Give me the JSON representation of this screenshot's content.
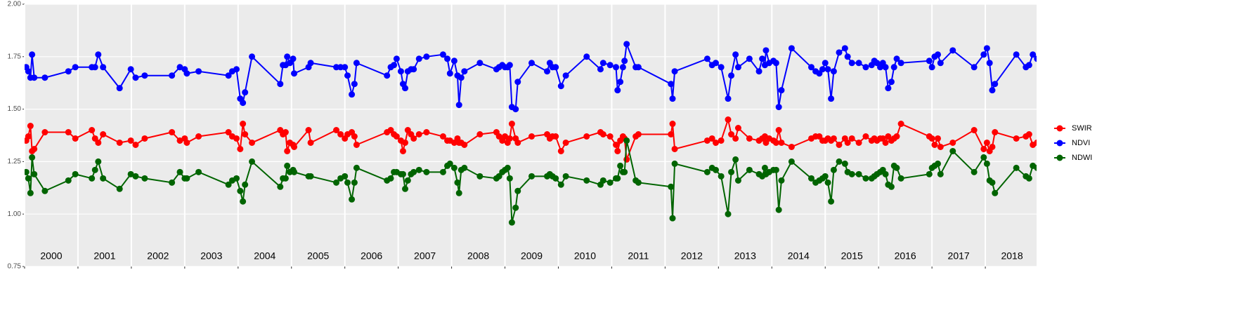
{
  "chart_data": {
    "type": "line",
    "x": [
      2000.03,
      2000.07,
      2000.11,
      2000.14,
      2000.18,
      2000.38,
      2000.82,
      2000.95,
      2001.26,
      2001.32,
      2001.38,
      2001.47,
      2001.78,
      2001.99,
      2002.08,
      2002.25,
      2002.76,
      2002.91,
      2003.0,
      2003.04,
      2003.26,
      2003.82,
      2003.89,
      2003.97,
      2004.04,
      2004.09,
      2004.13,
      2004.26,
      2004.79,
      2004.84,
      2004.89,
      2004.92,
      2004.97,
      2005.03,
      2005.05,
      2005.32,
      2005.36,
      2005.84,
      2005.92,
      2006.0,
      2006.05,
      2006.13,
      2006.18,
      2006.22,
      2006.79,
      2006.86,
      2006.92,
      2006.97,
      2007.05,
      2007.09,
      2007.13,
      2007.18,
      2007.24,
      2007.29,
      2007.39,
      2007.53,
      2007.84,
      2007.92,
      2007.97,
      2008.05,
      2008.11,
      2008.14,
      2008.18,
      2008.24,
      2008.53,
      2008.84,
      2008.89,
      2008.95,
      2009.0,
      2009.05,
      2009.09,
      2009.13,
      2009.2,
      2009.24,
      2009.5,
      2009.79,
      2009.84,
      2009.89,
      2009.95,
      2010.05,
      2010.14,
      2010.53,
      2010.79,
      2010.84,
      2010.97,
      2011.08,
      2011.11,
      2011.16,
      2011.21,
      2011.24,
      2011.28,
      2011.45,
      2011.5,
      2012.11,
      2012.14,
      2012.18,
      2012.79,
      2012.88,
      2012.95,
      2013.05,
      2013.18,
      2013.24,
      2013.32,
      2013.37,
      2013.58,
      2013.76,
      2013.82,
      2013.87,
      2013.89,
      2013.95,
      2014.03,
      2014.08,
      2014.13,
      2014.18,
      2014.37,
      2014.74,
      2014.82,
      2014.89,
      2014.95,
      2015.0,
      2015.05,
      2015.11,
      2015.16,
      2015.26,
      2015.37,
      2015.42,
      2015.5,
      2015.63,
      2015.76,
      2015.87,
      2015.92,
      2015.97,
      2016.03,
      2016.08,
      2016.13,
      2016.18,
      2016.24,
      2016.29,
      2016.34,
      2016.42,
      2016.95,
      2017.0,
      2017.05,
      2017.11,
      2017.16,
      2017.39,
      2017.79,
      2017.97,
      2018.03,
      2018.08,
      2018.13,
      2018.18,
      2018.58,
      2018.76,
      2018.82,
      2018.89,
      2018.97
    ],
    "series": [
      {
        "name": "SWIR",
        "color": "#ff0000",
        "values": [
          1.35,
          1.37,
          1.42,
          1.3,
          1.31,
          1.39,
          1.39,
          1.36,
          1.4,
          1.36,
          1.34,
          1.38,
          1.34,
          1.35,
          1.33,
          1.36,
          1.39,
          1.35,
          1.36,
          1.34,
          1.37,
          1.39,
          1.37,
          1.36,
          1.31,
          1.43,
          1.38,
          1.34,
          1.4,
          1.38,
          1.39,
          1.3,
          1.34,
          1.33,
          1.32,
          1.4,
          1.34,
          1.4,
          1.38,
          1.36,
          1.38,
          1.39,
          1.37,
          1.33,
          1.39,
          1.4,
          1.38,
          1.37,
          1.35,
          1.3,
          1.34,
          1.4,
          1.38,
          1.36,
          1.38,
          1.39,
          1.37,
          1.35,
          1.35,
          1.34,
          1.36,
          1.34,
          1.34,
          1.33,
          1.38,
          1.39,
          1.37,
          1.35,
          1.37,
          1.34,
          1.36,
          1.43,
          1.36,
          1.34,
          1.37,
          1.38,
          1.36,
          1.37,
          1.37,
          1.3,
          1.34,
          1.37,
          1.39,
          1.38,
          1.37,
          1.33,
          1.3,
          1.35,
          1.37,
          1.36,
          1.26,
          1.37,
          1.38,
          1.38,
          1.43,
          1.31,
          1.35,
          1.36,
          1.34,
          1.35,
          1.45,
          1.38,
          1.36,
          1.41,
          1.36,
          1.35,
          1.36,
          1.37,
          1.34,
          1.36,
          1.35,
          1.34,
          1.4,
          1.34,
          1.32,
          1.36,
          1.37,
          1.37,
          1.35,
          1.35,
          1.36,
          1.35,
          1.36,
          1.33,
          1.36,
          1.34,
          1.36,
          1.34,
          1.37,
          1.35,
          1.36,
          1.35,
          1.36,
          1.36,
          1.34,
          1.37,
          1.35,
          1.36,
          1.37,
          1.43,
          1.37,
          1.36,
          1.33,
          1.36,
          1.32,
          1.34,
          1.4,
          1.31,
          1.34,
          1.3,
          1.32,
          1.39,
          1.36,
          1.37,
          1.38,
          1.33,
          1.34
        ]
      },
      {
        "name": "NDVI",
        "color": "#0000ff",
        "values": [
          1.7,
          1.68,
          1.65,
          1.76,
          1.65,
          1.65,
          1.68,
          1.7,
          1.7,
          1.7,
          1.76,
          1.7,
          1.6,
          1.69,
          1.65,
          1.66,
          1.66,
          1.7,
          1.69,
          1.67,
          1.68,
          1.66,
          1.68,
          1.69,
          1.55,
          1.53,
          1.58,
          1.75,
          1.62,
          1.71,
          1.71,
          1.75,
          1.72,
          1.74,
          1.67,
          1.7,
          1.72,
          1.7,
          1.7,
          1.7,
          1.66,
          1.57,
          1.62,
          1.72,
          1.66,
          1.7,
          1.71,
          1.74,
          1.68,
          1.62,
          1.6,
          1.68,
          1.69,
          1.69,
          1.74,
          1.75,
          1.76,
          1.74,
          1.67,
          1.73,
          1.66,
          1.52,
          1.65,
          1.68,
          1.72,
          1.69,
          1.7,
          1.71,
          1.7,
          1.7,
          1.71,
          1.51,
          1.5,
          1.63,
          1.72,
          1.68,
          1.72,
          1.7,
          1.7,
          1.61,
          1.66,
          1.75,
          1.69,
          1.72,
          1.71,
          1.7,
          1.59,
          1.63,
          1.7,
          1.73,
          1.81,
          1.7,
          1.7,
          1.62,
          1.55,
          1.68,
          1.74,
          1.71,
          1.72,
          1.7,
          1.55,
          1.66,
          1.76,
          1.7,
          1.74,
          1.68,
          1.74,
          1.71,
          1.78,
          1.72,
          1.73,
          1.72,
          1.51,
          1.59,
          1.79,
          1.7,
          1.68,
          1.67,
          1.69,
          1.72,
          1.69,
          1.55,
          1.68,
          1.77,
          1.79,
          1.75,
          1.72,
          1.72,
          1.7,
          1.71,
          1.73,
          1.72,
          1.7,
          1.72,
          1.7,
          1.6,
          1.63,
          1.7,
          1.74,
          1.72,
          1.73,
          1.7,
          1.75,
          1.76,
          1.72,
          1.78,
          1.7,
          1.76,
          1.79,
          1.72,
          1.59,
          1.62,
          1.76,
          1.7,
          1.71,
          1.76,
          1.74
        ]
      },
      {
        "name": "NDWI",
        "color": "#006400",
        "values": [
          1.2,
          1.17,
          1.1,
          1.27,
          1.19,
          1.11,
          1.16,
          1.19,
          1.17,
          1.21,
          1.25,
          1.17,
          1.12,
          1.19,
          1.18,
          1.17,
          1.15,
          1.2,
          1.17,
          1.17,
          1.2,
          1.14,
          1.16,
          1.17,
          1.11,
          1.06,
          1.14,
          1.25,
          1.13,
          1.17,
          1.17,
          1.23,
          1.2,
          1.21,
          1.2,
          1.18,
          1.18,
          1.15,
          1.17,
          1.18,
          1.15,
          1.07,
          1.15,
          1.22,
          1.16,
          1.17,
          1.2,
          1.2,
          1.19,
          1.19,
          1.12,
          1.16,
          1.19,
          1.2,
          1.21,
          1.2,
          1.2,
          1.23,
          1.24,
          1.22,
          1.15,
          1.1,
          1.21,
          1.22,
          1.18,
          1.17,
          1.18,
          1.2,
          1.21,
          1.22,
          1.17,
          0.96,
          1.03,
          1.11,
          1.18,
          1.18,
          1.19,
          1.18,
          1.17,
          1.14,
          1.18,
          1.16,
          1.14,
          1.16,
          1.15,
          1.17,
          1.17,
          1.23,
          1.2,
          1.2,
          1.35,
          1.16,
          1.15,
          1.13,
          0.98,
          1.24,
          1.2,
          1.22,
          1.21,
          1.18,
          1.0,
          1.2,
          1.26,
          1.16,
          1.21,
          1.19,
          1.18,
          1.22,
          1.19,
          1.2,
          1.21,
          1.21,
          1.02,
          1.16,
          1.25,
          1.17,
          1.15,
          1.16,
          1.17,
          1.18,
          1.15,
          1.06,
          1.21,
          1.25,
          1.24,
          1.2,
          1.19,
          1.19,
          1.17,
          1.17,
          1.18,
          1.19,
          1.2,
          1.21,
          1.19,
          1.14,
          1.13,
          1.23,
          1.22,
          1.17,
          1.19,
          1.22,
          1.23,
          1.24,
          1.19,
          1.3,
          1.2,
          1.27,
          1.24,
          1.16,
          1.15,
          1.1,
          1.22,
          1.18,
          1.17,
          1.23,
          1.22
        ]
      }
    ],
    "xlim": [
      2000,
      2018.96
    ],
    "xticks": [
      2000,
      2001,
      2002,
      2003,
      2004,
      2005,
      2006,
      2007,
      2008,
      2009,
      2010,
      2011,
      2012,
      2013,
      2014,
      2015,
      2016,
      2017,
      2018
    ],
    "ylim": [
      0.75,
      2.0
    ],
    "yticks": [
      0.75,
      {
        "value": 1.0,
        "label": "1.00"
      },
      1.25,
      {
        "value": 1.5,
        "label": "1.50"
      },
      1.75,
      {
        "value": 2.0,
        "label": "2.00"
      }
    ],
    "year_labels": [
      {
        "label": "2000",
        "x": 2000.5
      },
      {
        "label": "2001",
        "x": 2001.5
      },
      {
        "label": "2002",
        "x": 2002.5
      },
      {
        "label": "2003",
        "x": 2003.5
      },
      {
        "label": "2004",
        "x": 2004.5
      },
      {
        "label": "2005",
        "x": 2005.5
      },
      {
        "label": "2006",
        "x": 2006.5
      },
      {
        "label": "2007",
        "x": 2007.5
      },
      {
        "label": "2008",
        "x": 2008.5
      },
      {
        "label": "2009",
        "x": 2009.5
      },
      {
        "label": "2010",
        "x": 2010.5
      },
      {
        "label": "2011",
        "x": 2011.5
      },
      {
        "label": "2012",
        "x": 2012.5
      },
      {
        "label": "2013",
        "x": 2013.5
      },
      {
        "label": "2014",
        "x": 2014.5
      },
      {
        "label": "2015",
        "x": 2015.5
      },
      {
        "label": "2016",
        "x": 2016.5
      },
      {
        "label": "2017",
        "x": 2017.5
      },
      {
        "label": "2018",
        "x": 2018.5
      }
    ],
    "grid": true,
    "legend": "right"
  }
}
